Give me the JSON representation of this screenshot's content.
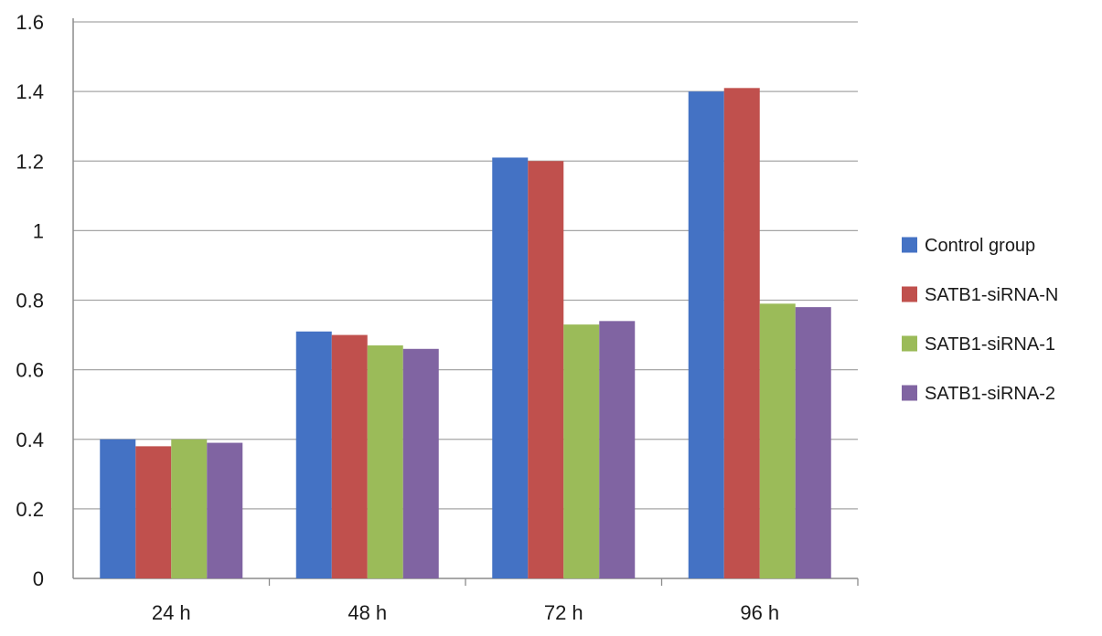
{
  "chart_data": {
    "type": "bar",
    "categories": [
      "24 h",
      "48 h",
      "72 h",
      "96 h"
    ],
    "series": [
      {
        "name": "Control group",
        "color": "#4472C4",
        "values": [
          0.4,
          0.71,
          1.21,
          1.4
        ]
      },
      {
        "name": "SATB1-siRNA-N",
        "color": "#C0504D",
        "values": [
          0.38,
          0.7,
          1.2,
          1.41
        ]
      },
      {
        "name": "SATB1-siRNA-1",
        "color": "#9BBB59",
        "values": [
          0.4,
          0.67,
          0.73,
          0.79
        ]
      },
      {
        "name": "SATB1-siRNA-2",
        "color": "#8064A2",
        "values": [
          0.39,
          0.66,
          0.74,
          0.78
        ]
      }
    ],
    "ylim": [
      0,
      1.6
    ],
    "yticks": [
      "0",
      "0.2",
      "0.4",
      "0.6",
      "0.8",
      "1",
      "1.2",
      "1.4",
      "1.6"
    ],
    "grid": true,
    "legend_position": "right"
  }
}
